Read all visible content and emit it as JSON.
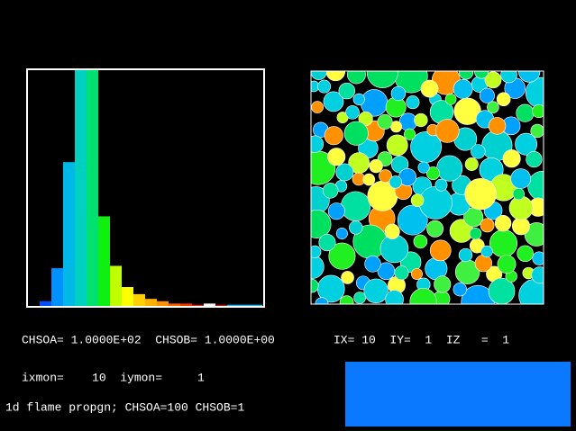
{
  "chart_data": {
    "type": "bar",
    "values": [
      2,
      16,
      61,
      100,
      100,
      38,
      17,
      8,
      5,
      3,
      2,
      1,
      1,
      0.5,
      1,
      0.5,
      0.5,
      0.5,
      0.5
    ],
    "colors": [
      "#0050ff",
      "#0090ff",
      "#00b8e8",
      "#00d0c0",
      "#00e070",
      "#10f010",
      "#c0ff00",
      "#ffff00",
      "#ffd000",
      "#ffb000",
      "#ff9000",
      "#ff6000",
      "#ff3000",
      "#e02000",
      "#ffffff",
      "#c01000",
      "#00c0ff",
      "#00c0ff",
      "#00c0ff"
    ],
    "ylim": [
      0,
      100
    ]
  },
  "status": {
    "line1": "CHSOA= 1.0000E+02  CHSOB= 1.0000E+00",
    "line2": "IX= 10  IY=  1  IZ   =  1",
    "line3": "ixmon=    10  iymon=     1",
    "line4": "1d flame propgn; CHSOA=100 CHSOB=1"
  }
}
